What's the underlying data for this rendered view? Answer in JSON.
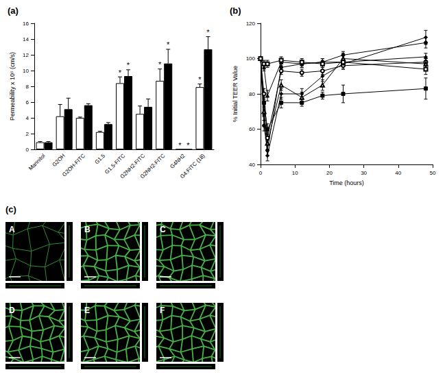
{
  "chart_data": [
    {
      "type": "bar",
      "title": "(a)",
      "y_label": "Permeability x 10⁶ (cm/s)",
      "categories": [
        "Mannitol",
        "G2OH",
        "G2OH-FITC",
        "G1.5",
        "G1.5-FITC",
        "G2NH2-FITC",
        "G2NH2-FITC",
        "G4NH2",
        "G4:FITC (18)"
      ],
      "series": [
        {
          "color": "#ffffff",
          "values": [
            0.9,
            4.2,
            4.0,
            2.2,
            8.4,
            4.5,
            8.7,
            0,
            7.9
          ],
          "errors": [
            0.1,
            1.5,
            0.1,
            0.1,
            0.8,
            1.0,
            1.5,
            0,
            0.4
          ],
          "annotations": [
            null,
            null,
            null,
            null,
            "*",
            null,
            "*",
            "*",
            "*"
          ]
        },
        {
          "color": "#000000",
          "values": [
            0.9,
            5.1,
            5.6,
            3.2,
            9.3,
            5.4,
            10.9,
            0,
            12.7
          ],
          "errors": [
            0.1,
            1.4,
            0.2,
            0.2,
            0.8,
            1.0,
            1.8,
            0,
            1.6
          ],
          "annotations": [
            null,
            null,
            null,
            null,
            "*",
            null,
            "*",
            "*",
            "*"
          ]
        }
      ],
      "ylim": [
        0,
        16
      ],
      "yticks": [
        0,
        2,
        4,
        6,
        8,
        10,
        12,
        14,
        16
      ],
      "grid": false
    },
    {
      "type": "line",
      "title": "(b)",
      "x_label": "Time (hours)",
      "y_label": "% Initial TEER Value",
      "x": [
        0,
        1,
        2,
        6,
        12,
        18,
        24,
        48
      ],
      "series": [
        {
          "color": "#000000",
          "marker": "circle",
          "values": [
            100,
            62,
            48,
            95,
            97,
            98,
            102,
            109
          ],
          "errors": [
            0,
            3,
            3,
            2,
            2,
            2,
            2,
            3
          ]
        },
        {
          "color": "#000000",
          "marker": "open_circle",
          "values": [
            100,
            80,
            55,
            93,
            92,
            93,
            96,
            98
          ],
          "errors": [
            0,
            3,
            4,
            2,
            2,
            2,
            2,
            3
          ]
        },
        {
          "color": "#000000",
          "marker": "triangle",
          "values": [
            100,
            95,
            79,
            98,
            97,
            98,
            98,
            101
          ],
          "errors": [
            0,
            2,
            3,
            2,
            2,
            2,
            2,
            2
          ]
        },
        {
          "color": "#000000",
          "marker": "square",
          "values": [
            100,
            75,
            60,
            75,
            75,
            79,
            80,
            83
          ],
          "errors": [
            0,
            3,
            3,
            3,
            2,
            2,
            5,
            6
          ]
        },
        {
          "color": "#000000",
          "marker": "diamond",
          "values": [
            100,
            68,
            45,
            80,
            80,
            90,
            97,
            112
          ],
          "errors": [
            0,
            3,
            3,
            3,
            3,
            3,
            3,
            4
          ]
        },
        {
          "color": "#000000",
          "marker": "open_triangle",
          "values": [
            100,
            70,
            52,
            85,
            78,
            85,
            100,
            97
          ],
          "errors": [
            0,
            3,
            4,
            3,
            3,
            3,
            3,
            4
          ]
        },
        {
          "color": "#000000",
          "marker": "open_square",
          "values": [
            100,
            97,
            97,
            99,
            98,
            97,
            98,
            94
          ],
          "errors": [
            0,
            2,
            2,
            2,
            2,
            2,
            2,
            3
          ]
        }
      ],
      "xlim": [
        0,
        50
      ],
      "xticks": [
        0,
        10,
        20,
        30,
        40,
        50
      ],
      "ylim": [
        40,
        120
      ],
      "yticks": [
        40,
        60,
        80,
        100,
        120
      ],
      "grid": false
    }
  ],
  "panel_c": {
    "title": "(c)",
    "images": [
      "A",
      "B",
      "C",
      "D",
      "E",
      "F"
    ]
  }
}
